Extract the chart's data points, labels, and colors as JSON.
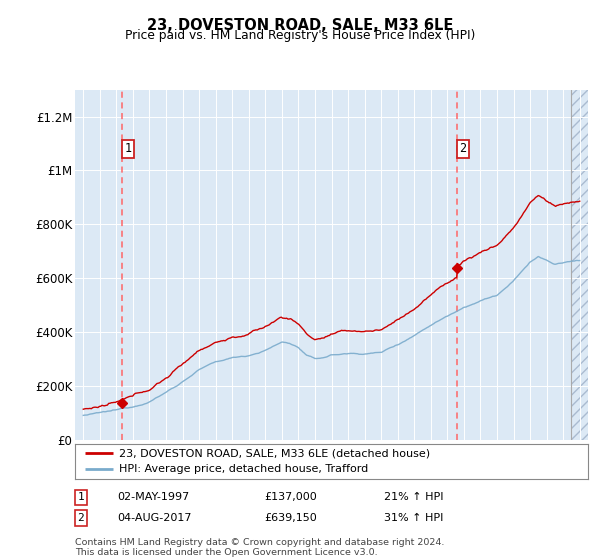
{
  "title": "23, DOVESTON ROAD, SALE, M33 6LE",
  "subtitle": "Price paid vs. HM Land Registry's House Price Index (HPI)",
  "background_color": "#ffffff",
  "plot_bg_color": "#dce9f5",
  "grid_color": "#ffffff",
  "sale1_date": 1997.33,
  "sale1_price": 137000,
  "sale2_date": 2017.58,
  "sale2_price": 639150,
  "ylim": [
    0,
    1300000
  ],
  "xlim": [
    1994.5,
    2025.5
  ],
  "yticks": [
    0,
    200000,
    400000,
    600000,
    800000,
    1000000,
    1200000
  ],
  "ytick_labels": [
    "£0",
    "£200K",
    "£400K",
    "£600K",
    "£800K",
    "£1M",
    "£1.2M"
  ],
  "xticks": [
    1995,
    1996,
    1997,
    1998,
    1999,
    2000,
    2001,
    2002,
    2003,
    2004,
    2005,
    2006,
    2007,
    2008,
    2009,
    2010,
    2011,
    2012,
    2013,
    2014,
    2015,
    2016,
    2017,
    2018,
    2019,
    2020,
    2021,
    2022,
    2023,
    2024,
    2025
  ],
  "red_line_color": "#cc0000",
  "blue_line_color": "#7aabcc",
  "marker_color": "#cc0000",
  "dashed_line_color": "#ff6666",
  "footnote": "Contains HM Land Registry data © Crown copyright and database right 2024.\nThis data is licensed under the Open Government Licence v3.0.",
  "legend1_label": "23, DOVESTON ROAD, SALE, M33 6LE (detached house)",
  "legend2_label": "HPI: Average price, detached house, Trafford",
  "table_rows": [
    {
      "num": "1",
      "date": "02-MAY-1997",
      "price": "£137,000",
      "hpi": "21% ↑ HPI"
    },
    {
      "num": "2",
      "date": "04-AUG-2017",
      "price": "£639,150",
      "hpi": "31% ↑ HPI"
    }
  ]
}
